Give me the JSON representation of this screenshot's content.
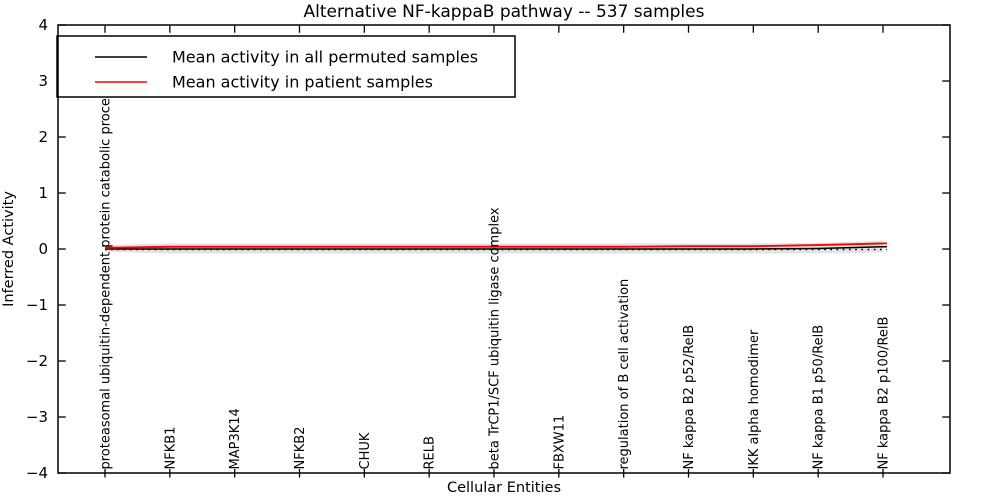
{
  "chart_data": {
    "type": "line",
    "title": "Alternative NF-kappaB pathway -- 537 samples",
    "xlabel": "Cellular Entities",
    "ylabel": "Inferred Activity",
    "ylim": [
      -4,
      4
    ],
    "yticks": [
      "4",
      "3",
      "2",
      "1",
      "0",
      "−1",
      "−2",
      "−3",
      "−4"
    ],
    "ytick_values": [
      4,
      3,
      2,
      1,
      0,
      -1,
      -2,
      -3,
      -4
    ],
    "grid": false,
    "legend_position": "upper-left",
    "categories": [
      "proteasomal ubiquitin-dependent protein catabolic process",
      "NFKB1",
      "MAP3K14",
      "NFKB2",
      "CHUK",
      "RELB",
      "beta TrCP1/SCF ubiquitin ligase complex",
      "FBXW11",
      "regulation of B cell activation",
      "NF kappa B2 p52/RelB",
      "IKK alpha homodimer",
      "NF kappa B1 p50/RelB",
      "NF kappa B2 p100/RelB"
    ],
    "series": [
      {
        "name": "Mean activity in all permuted samples",
        "color": "#000000",
        "style": "solid",
        "values": [
          0.0,
          0.0,
          0.0,
          0.0,
          0.0,
          0.0,
          0.0,
          0.0,
          0.0,
          0.0,
          0.0,
          0.01,
          0.04
        ]
      },
      {
        "name": "Mean activity in patient samples",
        "color": "#ff0000",
        "style": "solid",
        "values": [
          0.02,
          0.04,
          0.04,
          0.04,
          0.04,
          0.04,
          0.04,
          0.04,
          0.04,
          0.05,
          0.05,
          0.07,
          0.1
        ]
      }
    ],
    "zero_line": {
      "value": 0.0,
      "color": "#000000",
      "style": "dotted"
    },
    "band": {
      "color": "#e3e3e3",
      "upper": [
        0.07,
        0.1,
        0.1,
        0.1,
        0.1,
        0.1,
        0.1,
        0.1,
        0.1,
        0.1,
        0.1,
        0.11,
        0.15
      ],
      "lower": [
        -0.05,
        -0.08,
        -0.08,
        -0.08,
        -0.08,
        -0.08,
        -0.08,
        -0.08,
        -0.08,
        -0.08,
        -0.08,
        -0.08,
        -0.06
      ]
    },
    "legend": [
      {
        "label": "Mean activity in all permuted samples",
        "color": "#000000"
      },
      {
        "label": "Mean activity in patient samples",
        "color": "#ff0000"
      }
    ]
  }
}
